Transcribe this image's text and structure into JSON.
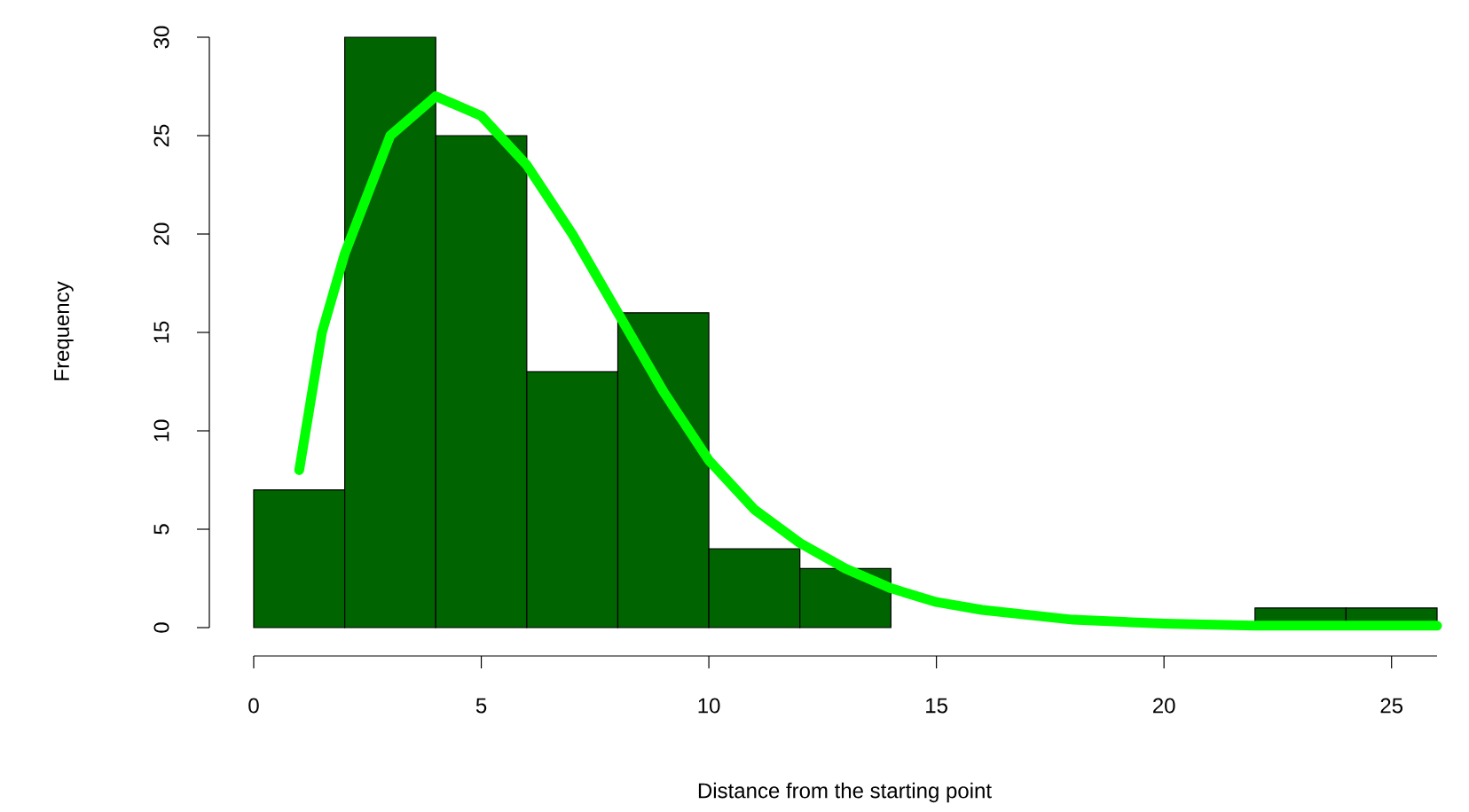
{
  "chart_data": {
    "type": "histogram",
    "xlabel": "Distance from the starting point",
    "ylabel": "Frequency",
    "bins": [
      0,
      2,
      4,
      6,
      8,
      10,
      12,
      14,
      16,
      18,
      20,
      22,
      24,
      26
    ],
    "values": [
      7,
      30,
      25,
      13,
      16,
      4,
      3,
      0,
      0,
      0,
      0,
      1,
      1
    ],
    "color": "#006400",
    "series": [
      {
        "type": "line",
        "color": "#00ff00",
        "x": [
          1,
          1.5,
          2,
          3,
          4,
          5,
          6,
          7,
          8,
          9,
          10,
          11,
          12,
          13,
          14,
          15,
          16,
          18,
          20,
          22,
          24,
          26
        ],
        "values": [
          8,
          15,
          19,
          25,
          27,
          26,
          23.5,
          20,
          16,
          12,
          8.5,
          6,
          4.3,
          3,
          2,
          1.3,
          0.9,
          0.4,
          0.2,
          0.1,
          0.1,
          0.1
        ]
      }
    ],
    "xlim": [
      0,
      26
    ],
    "ylim": [
      0,
      30
    ],
    "xticks": [
      0,
      5,
      10,
      15,
      20,
      25
    ],
    "yticks": [
      0,
      5,
      10,
      15,
      20,
      25,
      30
    ],
    "marker": "none",
    "line_style": "solid"
  }
}
